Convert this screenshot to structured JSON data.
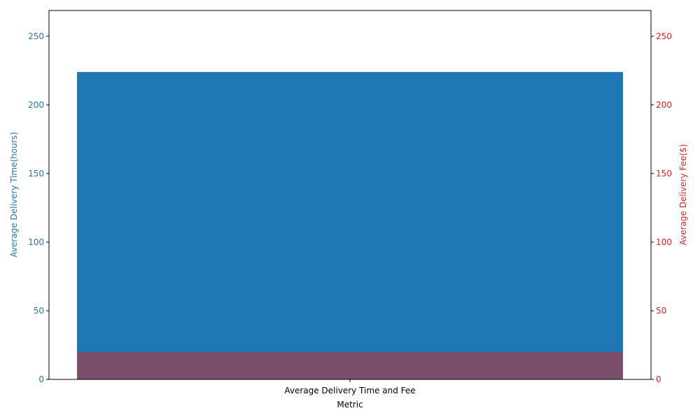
{
  "chart_data": {
    "type": "bar",
    "categories": [
      "Average Delivery Time and Fee"
    ],
    "xlabel": "Metric",
    "series": [
      {
        "name": "Average Delivery Time(hours)",
        "axis": "left",
        "values": [
          224
        ],
        "color": "#1f77b4",
        "opacity": 1.0
      },
      {
        "name": "Average Delivery Fee($)",
        "axis": "right",
        "values": [
          20
        ],
        "color": "#d62728",
        "opacity": 0.5
      }
    ],
    "left_axis": {
      "label": "Average Delivery Time(hours)",
      "color": "#1f77b4",
      "ylim": [
        0,
        268.8
      ],
      "ticks": [
        0,
        50,
        100,
        150,
        200,
        250
      ]
    },
    "right_axis": {
      "label": "Average Delivery Fee($)",
      "color": "#d62728",
      "ylim": [
        0,
        268.8
      ],
      "ticks": [
        0,
        50,
        100,
        150,
        200,
        250
      ]
    },
    "grid": false,
    "legend": "none"
  }
}
